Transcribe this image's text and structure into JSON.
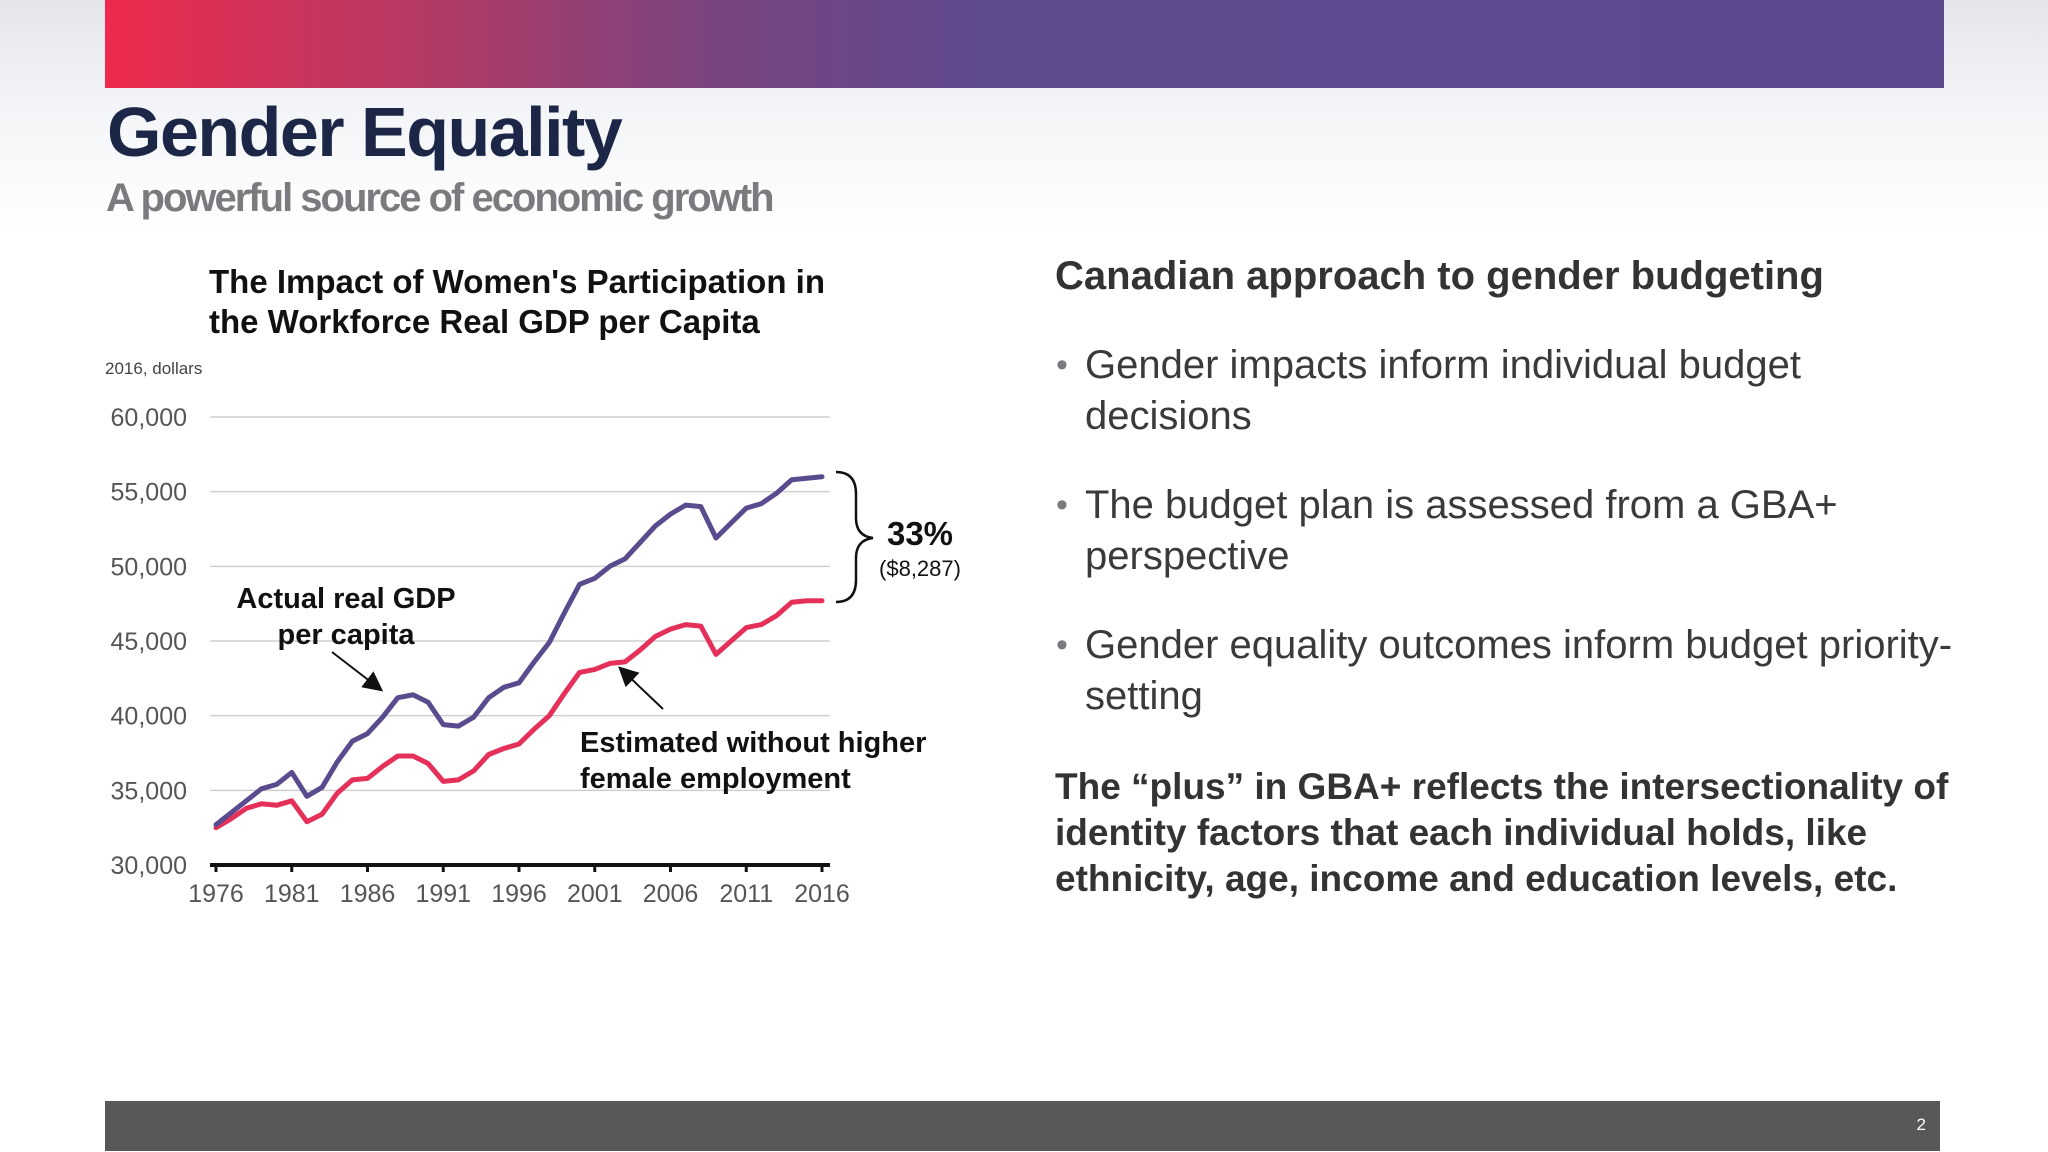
{
  "slide": {
    "title": "Gender Equality",
    "subtitle": "A powerful source of economic growth",
    "page_number": "2"
  },
  "colors": {
    "header_gradient_start": "#ee2a4e",
    "header_gradient_end": "#5d4a8e",
    "actual_series": "#5a4a8e",
    "estimated_series": "#e5305a",
    "footer": "#58585a",
    "title": "#1c2747"
  },
  "chart_data": {
    "type": "line",
    "title_lines": [
      "The Impact of Women's Participation in",
      "the Workforce Real GDP per Capita"
    ],
    "unit_label": "2016, dollars",
    "xlim": [
      1976,
      2016
    ],
    "ylim": [
      30000,
      60000
    ],
    "x_ticks": [
      "1976",
      "1981",
      "1986",
      "1991",
      "1996",
      "2001",
      "2006",
      "2011",
      "2016"
    ],
    "y_ticks": [
      {
        "value": 60000,
        "label": "60,000"
      },
      {
        "value": 55000,
        "label": "55,000"
      },
      {
        "value": 50000,
        "label": "50,000"
      },
      {
        "value": 45000,
        "label": "45,000"
      },
      {
        "value": 40000,
        "label": "40,000"
      },
      {
        "value": 35000,
        "label": "35,000"
      },
      {
        "value": 30000,
        "label": "30,000"
      }
    ],
    "grid": true,
    "x": [
      1976,
      1977,
      1978,
      1979,
      1980,
      1981,
      1982,
      1983,
      1984,
      1985,
      1986,
      1987,
      1988,
      1989,
      1990,
      1991,
      1992,
      1993,
      1994,
      1995,
      1996,
      1997,
      1998,
      1999,
      2000,
      2001,
      2002,
      2003,
      2004,
      2005,
      2006,
      2007,
      2008,
      2009,
      2010,
      2011,
      2012,
      2013,
      2014,
      2015,
      2016
    ],
    "series": [
      {
        "name": "Actual real GDP per capita",
        "values": [
          32700,
          33500,
          34300,
          35100,
          35400,
          36200,
          34600,
          35200,
          36900,
          38300,
          38800,
          39900,
          41200,
          41400,
          40900,
          39400,
          39300,
          39900,
          41200,
          41900,
          42200,
          43600,
          44900,
          46900,
          48800,
          49200,
          50000,
          50500,
          51600,
          52700,
          53500,
          54100,
          54000,
          51900,
          52900,
          53900,
          54200,
          54900,
          55800,
          55900,
          56000
        ]
      },
      {
        "name": "Estimated without higher female employment",
        "values": [
          32500,
          33100,
          33800,
          34100,
          34000,
          34300,
          32900,
          33400,
          34800,
          35700,
          35800,
          36600,
          37300,
          37300,
          36800,
          35600,
          35700,
          36300,
          37400,
          37800,
          38100,
          39100,
          40000,
          41500,
          42900,
          43100,
          43500,
          43600,
          44400,
          45300,
          45800,
          46100,
          46000,
          44100,
          45000,
          45900,
          46100,
          46700,
          47600,
          47700,
          47700
        ]
      }
    ],
    "annotations": {
      "actual_label_lines": [
        "Actual real GDP",
        "per capita"
      ],
      "estimated_label_lines": [
        "Estimated without higher",
        "female employment"
      ],
      "gap_percent": "33%",
      "gap_dollars": "($8,287)"
    }
  },
  "right_panel": {
    "heading": "Canadian approach to gender budgeting",
    "bullets": [
      "Gender impacts inform individual budget decisions",
      "The budget plan is assessed from a GBA+ perspective",
      "Gender equality outcomes inform budget priority-setting"
    ],
    "bullet_glyph": "•",
    "note": "The “plus” in GBA+ reflects the intersectionality of identity factors that each individual holds, like ethnicity, age, income and education levels, etc."
  }
}
